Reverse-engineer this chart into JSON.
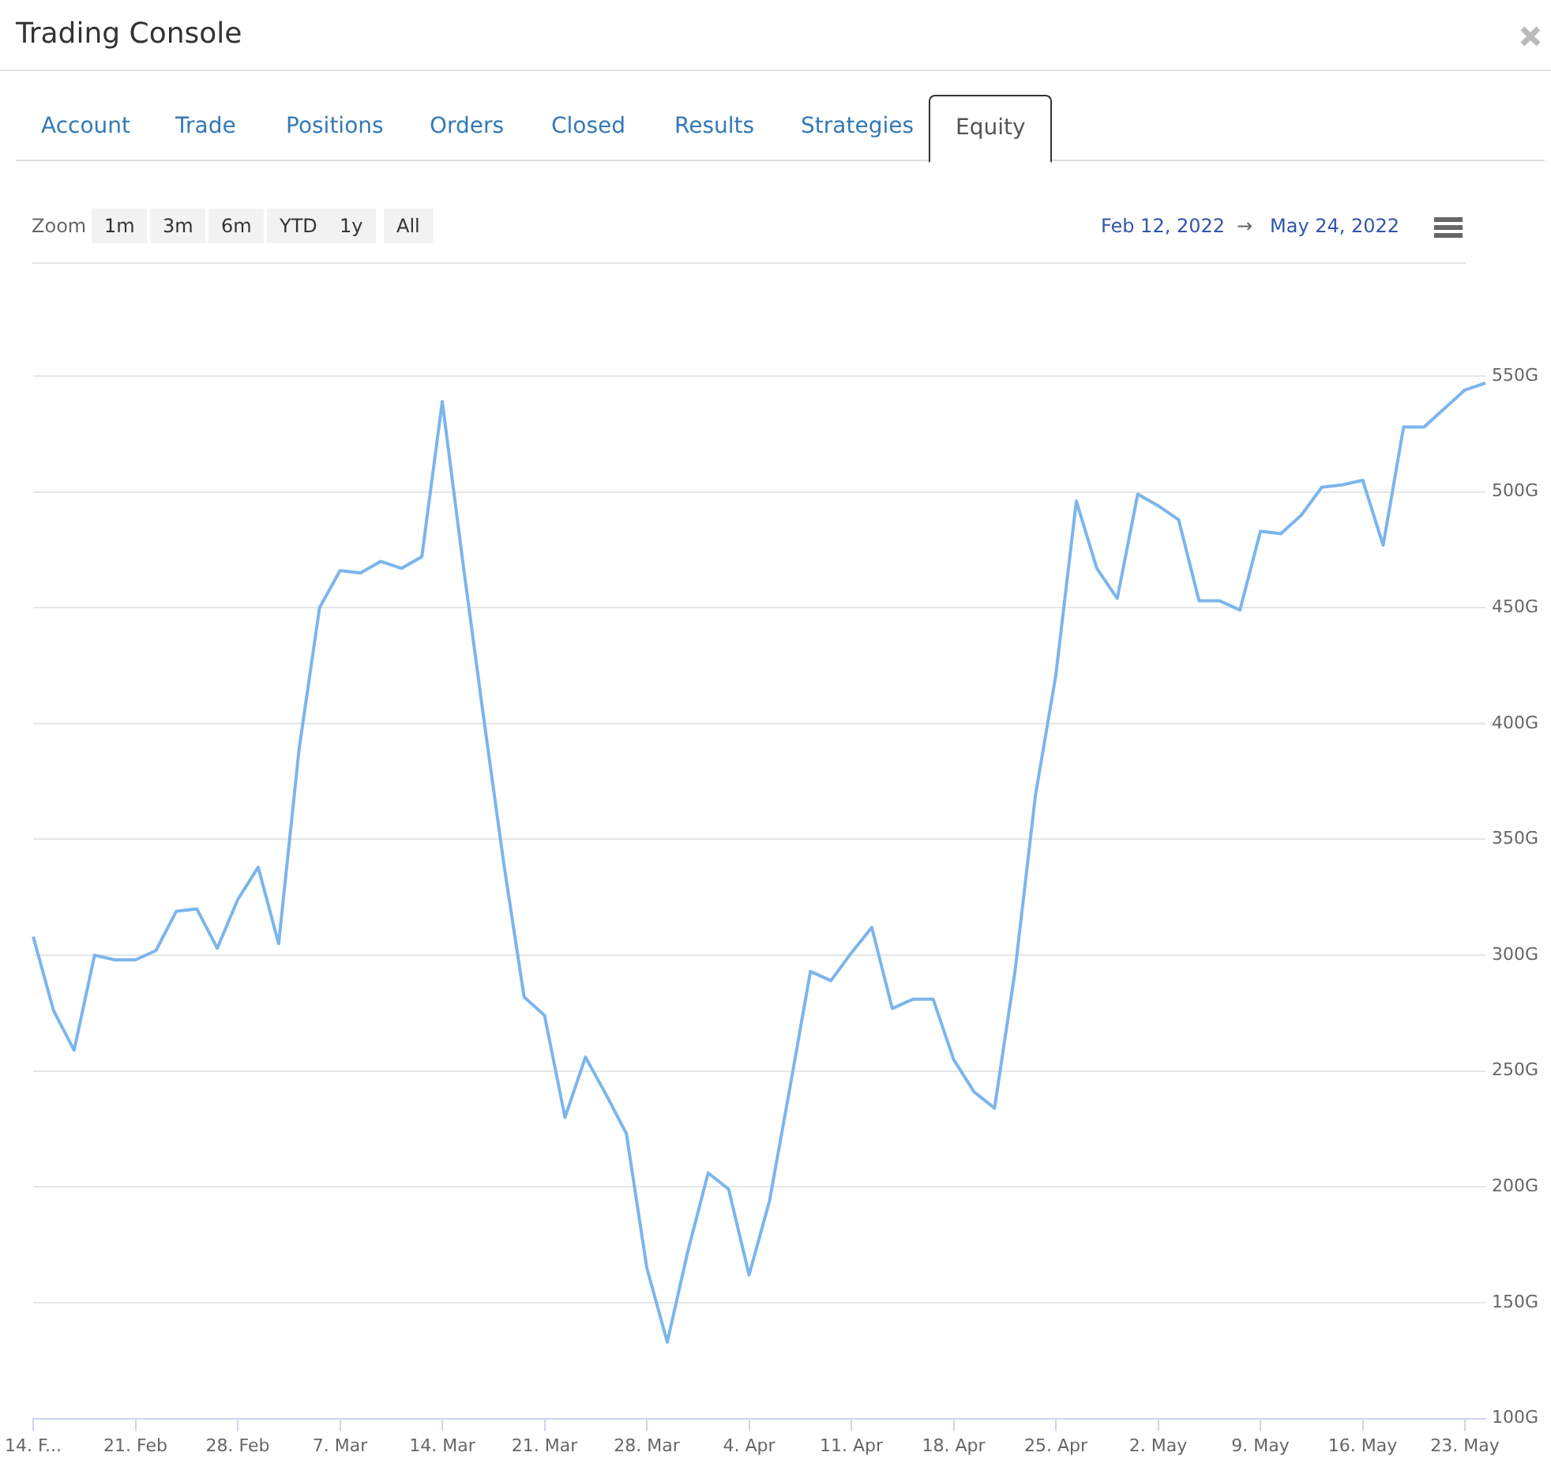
{
  "chart_data": {
    "type": "line",
    "title": "Trading Console",
    "annotations": [
      "Account",
      "Trade",
      "Positions",
      "Orders",
      "Closed",
      "Results",
      "Strategies",
      "Equity",
      "Zoom",
      "1m",
      "3m",
      "6m",
      "YTD",
      "1y",
      "All",
      "Feb 12, 2022",
      "→",
      "May 24, 2022"
    ],
    "categories": [
      "14. F...",
      null,
      null,
      null,
      null,
      "21. Feb",
      null,
      null,
      null,
      null,
      "28. Feb",
      null,
      null,
      null,
      null,
      "7. Mar",
      null,
      null,
      null,
      null,
      "14. Mar",
      null,
      null,
      null,
      null,
      "21. Mar",
      null,
      null,
      null,
      null,
      "28. Mar",
      null,
      null,
      null,
      null,
      "4. Apr",
      null,
      null,
      null,
      null,
      "11. Apr",
      null,
      null,
      null,
      null,
      "18. Apr",
      null,
      null,
      null,
      null,
      "25. Apr",
      null,
      null,
      null,
      null,
      "2. May",
      null,
      null,
      null,
      null,
      "9. May",
      null,
      null,
      null,
      null,
      "16. May",
      null,
      null,
      null,
      null,
      "23. May",
      null
    ],
    "series": [
      {
        "color": "#7cb5ec",
        "values": [
          308,
          276,
          259,
          300,
          298,
          298,
          302,
          319,
          320,
          303,
          324,
          338,
          305,
          389,
          450,
          466,
          465,
          470,
          467,
          472,
          539,
          470,
          404,
          340,
          282,
          274,
          230,
          256,
          240,
          223,
          165,
          133,
          172,
          206,
          199,
          162,
          194,
          243,
          293,
          289,
          301,
          312,
          277,
          281,
          281,
          255,
          241,
          234,
          293,
          369,
          421,
          496,
          467,
          454,
          499,
          494,
          488,
          453,
          453,
          449,
          483,
          482,
          490,
          502,
          503,
          505,
          477,
          528,
          528,
          536,
          544,
          547
        ]
      }
    ],
    "ylim": [
      100,
      550
    ],
    "yticks": [
      {
        "value": 100,
        "label": "100G"
      },
      {
        "value": 150,
        "label": "150G"
      },
      {
        "value": 200,
        "label": "200G"
      },
      {
        "value": 250,
        "label": "250G"
      },
      {
        "value": 300,
        "label": "300G"
      },
      {
        "value": 350,
        "label": "350G"
      },
      {
        "value": 400,
        "label": "400G"
      },
      {
        "value": 450,
        "label": "450G"
      },
      {
        "value": 500,
        "label": "500G"
      },
      {
        "value": 550,
        "label": "550G"
      }
    ],
    "grid": "y",
    "legend": false,
    "marker": "none",
    "line_style": "solid"
  }
}
